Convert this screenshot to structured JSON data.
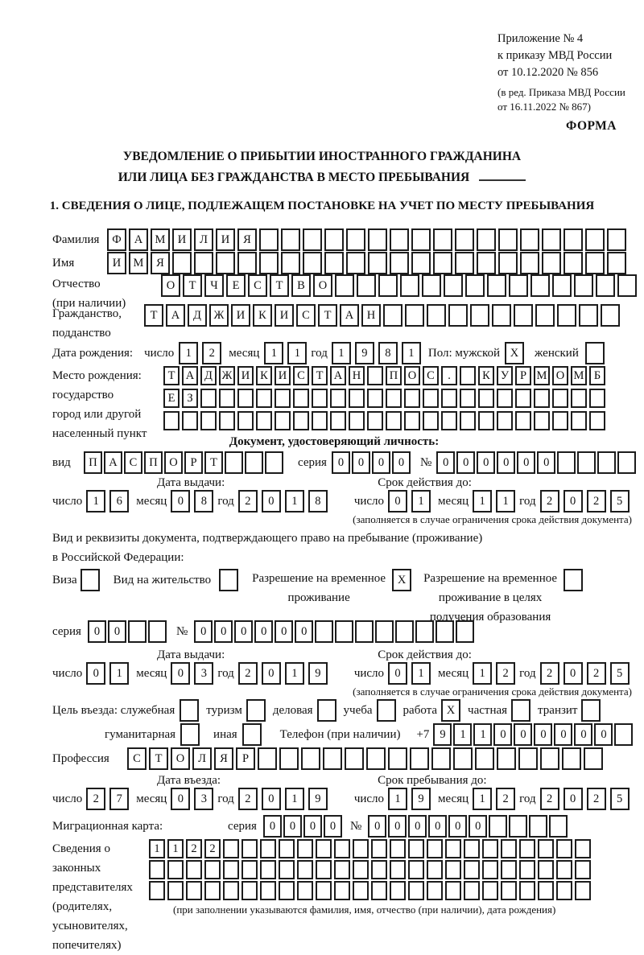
{
  "doc": {
    "appendix": [
      "Приложение № 4",
      "к приказу МВД России",
      "от 10.12.2020 № 856"
    ],
    "amendment": [
      "(в ред. Приказа МВД России",
      "от 16.11.2022 № 867)"
    ],
    "forma": "ФОРМА",
    "title1": "УВЕДОМЛЕНИЕ О ПРИБЫТИИ ИНОСТРАННОГО ГРАЖДАНИНА",
    "title2": "ИЛИ ЛИЦА БЕЗ ГРАЖДАНСТВА В МЕСТО ПРЕБЫВАНИЯ",
    "section1": "1. СВЕДЕНИЯ О ЛИЦЕ, ПОДЛЕЖАЩЕМ ПОСТАНОВКЕ НА УЧЕТ ПО МЕСТУ ПРЕБЫВАНИЯ"
  },
  "lbl": {
    "surname": "Фамилия",
    "name": "Имя",
    "patronymic": "Отчество",
    "patronymic2": "(при наличии)",
    "citizenship": "Гражданство,",
    "citizenship2": "подданство",
    "birthdate": "Дата рождения:",
    "day": "число",
    "month": "месяц",
    "year": "год",
    "sex_male": "Пол: мужской",
    "sex_female": "женский",
    "birthplace": "Место рождения:",
    "birthplace2": "государство",
    "birthplace3": "город или другой",
    "birthplace4": "населенный пункт",
    "iddoc_heading": "Документ, удостоверяющий личность:",
    "kind": "вид",
    "series": "серия",
    "number": "№",
    "issue_date": "Дата выдачи:",
    "valid_until": "Срок действия до:",
    "valid_note": "(заполняется в случае ограничения срока действия документа)",
    "stay_doc1": "Вид и реквизиты документа, подтверждающего право на пребывание (проживание)",
    "stay_doc2": "в Российской Федерации:",
    "visa": "Виза",
    "residence": "Вид на жительство",
    "temp1": "Разрешение на временное",
    "temp2": "проживание",
    "tempedu1": "Разрешение на временное",
    "tempedu2": "проживание в целях",
    "tempedu3": "получения образования",
    "purpose": "Цель въезда: служебная",
    "tourism": "туризм",
    "business": "деловая",
    "study": "учеба",
    "work": "работа",
    "private": "частная",
    "transit": "транзит",
    "humanitarian": "гуманитарная",
    "other": "иная",
    "phone": "Телефон (при наличии)",
    "plus7": "+7",
    "profession": "Профессия",
    "entry_date": "Дата въезда:",
    "stay_until": "Срок пребывания до:",
    "migration_card": "Миграционная карта:",
    "repr1": "Сведения о",
    "repr2": "законных",
    "repr3": "представителях",
    "repr4": "(родителях,",
    "repr5": "усыновителях,",
    "repr6": "попечителях)",
    "repr_note": "(при заполнении указываются фамилия, имя, отчество (при наличии), дата рождения)"
  },
  "f": {
    "surname": {
      "v": "ФАМИЛИЯ",
      "n": 24
    },
    "name": {
      "v": "ИМЯ",
      "n": 24
    },
    "patronymic": {
      "v": "ОТЧЕСТВО",
      "n": 22
    },
    "citizenship": {
      "v": "ТАДЖИКИСТАН",
      "n": 22
    },
    "birth_d": {
      "v": "12",
      "n": 2
    },
    "birth_m": {
      "v": "11",
      "n": 2
    },
    "birth_y": {
      "v": "1981",
      "n": 4
    },
    "male": {
      "v": "X",
      "n": 1
    },
    "female": {
      "v": "",
      "n": 1
    },
    "bp1": {
      "v": "ТАДЖИКИСТАН ПОС. КУРМОМБ",
      "n": 24
    },
    "bp2": {
      "v": "ЕЗ",
      "n": 24
    },
    "bp3": {
      "v": "",
      "n": 24
    },
    "idkind": {
      "v": "ПАСПОРТ",
      "n": 10
    },
    "idseries": {
      "v": "0000",
      "n": 4
    },
    "idnum": {
      "v": "000000",
      "n": 10
    },
    "idiss_d": {
      "v": "16",
      "n": 2
    },
    "idiss_m": {
      "v": "08",
      "n": 2
    },
    "idiss_y": {
      "v": "2018",
      "n": 4
    },
    "idval_d": {
      "v": "01",
      "n": 2
    },
    "idval_m": {
      "v": "11",
      "n": 2
    },
    "idval_y": {
      "v": "2025",
      "n": 4
    },
    "visa": {
      "v": "",
      "n": 1
    },
    "resid": {
      "v": "",
      "n": 1
    },
    "temp": {
      "v": "X",
      "n": 1
    },
    "tempedu": {
      "v": "",
      "n": 1
    },
    "pseries": {
      "v": "00",
      "n": 4
    },
    "pnum": {
      "v": "000000",
      "n": 14
    },
    "piss_d": {
      "v": "01",
      "n": 2
    },
    "piss_m": {
      "v": "03",
      "n": 2
    },
    "piss_y": {
      "v": "2019",
      "n": 4
    },
    "pval_d": {
      "v": "01",
      "n": 2
    },
    "pval_m": {
      "v": "12",
      "n": 2
    },
    "pval_y": {
      "v": "2025",
      "n": 4
    },
    "cb_official": {
      "v": "",
      "n": 1
    },
    "cb_tourism": {
      "v": "",
      "n": 1
    },
    "cb_business": {
      "v": "",
      "n": 1
    },
    "cb_study": {
      "v": "",
      "n": 1
    },
    "cb_work": {
      "v": "X",
      "n": 1
    },
    "cb_private": {
      "v": "",
      "n": 1
    },
    "cb_transit": {
      "v": "",
      "n": 1
    },
    "cb_humanitarian": {
      "v": "",
      "n": 1
    },
    "cb_other": {
      "v": "",
      "n": 1
    },
    "phone": {
      "v": "911000000",
      "n": 10
    },
    "profession": {
      "v": "СТОЛЯР",
      "n": 22
    },
    "entry_d": {
      "v": "27",
      "n": 2
    },
    "entry_m": {
      "v": "03",
      "n": 2
    },
    "entry_y": {
      "v": "2019",
      "n": 4
    },
    "stay_d": {
      "v": "19",
      "n": 2
    },
    "stay_m": {
      "v": "12",
      "n": 2
    },
    "stay_y": {
      "v": "2025",
      "n": 4
    },
    "mcseries": {
      "v": "0000",
      "n": 4
    },
    "mcnum": {
      "v": "000000",
      "n": 10
    },
    "repr1": {
      "v": "1122",
      "n": 24
    },
    "repr2": {
      "v": "",
      "n": 24
    },
    "repr3": {
      "v": "",
      "n": 24
    }
  }
}
